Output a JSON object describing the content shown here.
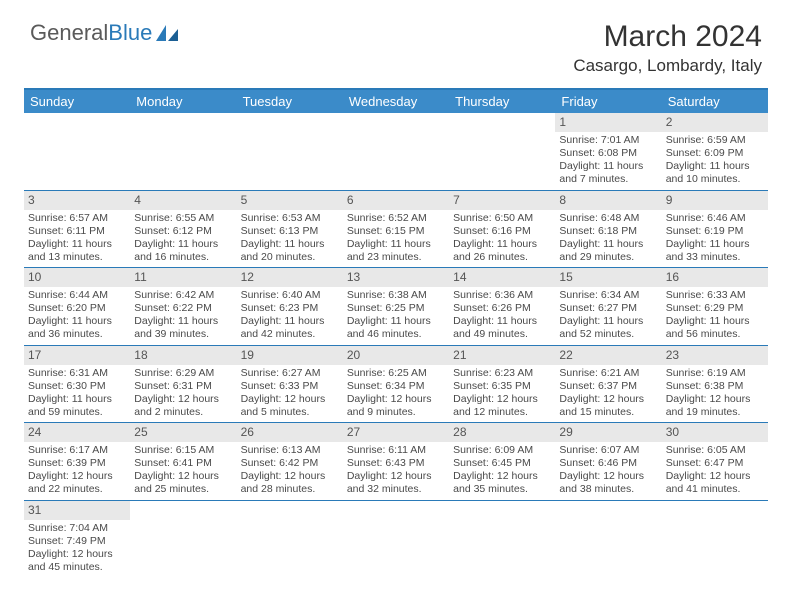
{
  "logo": {
    "text_a": "General",
    "text_b": "Blue"
  },
  "title": "March 2024",
  "subtitle": "Casargo, Lombardy, Italy",
  "colors": {
    "header_bg": "#3b8bc9",
    "border": "#2a7ab8",
    "daynum_bg": "#e8e8e8",
    "text": "#4a4a4a"
  },
  "day_names": [
    "Sunday",
    "Monday",
    "Tuesday",
    "Wednesday",
    "Thursday",
    "Friday",
    "Saturday"
  ],
  "weeks": [
    [
      null,
      null,
      null,
      null,
      null,
      {
        "n": "1",
        "sunrise": "7:01 AM",
        "sunset": "6:08 PM",
        "day_h": "11",
        "day_m": "7"
      },
      {
        "n": "2",
        "sunrise": "6:59 AM",
        "sunset": "6:09 PM",
        "day_h": "11",
        "day_m": "10"
      }
    ],
    [
      {
        "n": "3",
        "sunrise": "6:57 AM",
        "sunset": "6:11 PM",
        "day_h": "11",
        "day_m": "13"
      },
      {
        "n": "4",
        "sunrise": "6:55 AM",
        "sunset": "6:12 PM",
        "day_h": "11",
        "day_m": "16"
      },
      {
        "n": "5",
        "sunrise": "6:53 AM",
        "sunset": "6:13 PM",
        "day_h": "11",
        "day_m": "20"
      },
      {
        "n": "6",
        "sunrise": "6:52 AM",
        "sunset": "6:15 PM",
        "day_h": "11",
        "day_m": "23"
      },
      {
        "n": "7",
        "sunrise": "6:50 AM",
        "sunset": "6:16 PM",
        "day_h": "11",
        "day_m": "26"
      },
      {
        "n": "8",
        "sunrise": "6:48 AM",
        "sunset": "6:18 PM",
        "day_h": "11",
        "day_m": "29"
      },
      {
        "n": "9",
        "sunrise": "6:46 AM",
        "sunset": "6:19 PM",
        "day_h": "11",
        "day_m": "33"
      }
    ],
    [
      {
        "n": "10",
        "sunrise": "6:44 AM",
        "sunset": "6:20 PM",
        "day_h": "11",
        "day_m": "36"
      },
      {
        "n": "11",
        "sunrise": "6:42 AM",
        "sunset": "6:22 PM",
        "day_h": "11",
        "day_m": "39"
      },
      {
        "n": "12",
        "sunrise": "6:40 AM",
        "sunset": "6:23 PM",
        "day_h": "11",
        "day_m": "42"
      },
      {
        "n": "13",
        "sunrise": "6:38 AM",
        "sunset": "6:25 PM",
        "day_h": "11",
        "day_m": "46"
      },
      {
        "n": "14",
        "sunrise": "6:36 AM",
        "sunset": "6:26 PM",
        "day_h": "11",
        "day_m": "49"
      },
      {
        "n": "15",
        "sunrise": "6:34 AM",
        "sunset": "6:27 PM",
        "day_h": "11",
        "day_m": "52"
      },
      {
        "n": "16",
        "sunrise": "6:33 AM",
        "sunset": "6:29 PM",
        "day_h": "11",
        "day_m": "56"
      }
    ],
    [
      {
        "n": "17",
        "sunrise": "6:31 AM",
        "sunset": "6:30 PM",
        "day_h": "11",
        "day_m": "59"
      },
      {
        "n": "18",
        "sunrise": "6:29 AM",
        "sunset": "6:31 PM",
        "day_h": "12",
        "day_m": "2"
      },
      {
        "n": "19",
        "sunrise": "6:27 AM",
        "sunset": "6:33 PM",
        "day_h": "12",
        "day_m": "5"
      },
      {
        "n": "20",
        "sunrise": "6:25 AM",
        "sunset": "6:34 PM",
        "day_h": "12",
        "day_m": "9"
      },
      {
        "n": "21",
        "sunrise": "6:23 AM",
        "sunset": "6:35 PM",
        "day_h": "12",
        "day_m": "12"
      },
      {
        "n": "22",
        "sunrise": "6:21 AM",
        "sunset": "6:37 PM",
        "day_h": "12",
        "day_m": "15"
      },
      {
        "n": "23",
        "sunrise": "6:19 AM",
        "sunset": "6:38 PM",
        "day_h": "12",
        "day_m": "19"
      }
    ],
    [
      {
        "n": "24",
        "sunrise": "6:17 AM",
        "sunset": "6:39 PM",
        "day_h": "12",
        "day_m": "22"
      },
      {
        "n": "25",
        "sunrise": "6:15 AM",
        "sunset": "6:41 PM",
        "day_h": "12",
        "day_m": "25"
      },
      {
        "n": "26",
        "sunrise": "6:13 AM",
        "sunset": "6:42 PM",
        "day_h": "12",
        "day_m": "28"
      },
      {
        "n": "27",
        "sunrise": "6:11 AM",
        "sunset": "6:43 PM",
        "day_h": "12",
        "day_m": "32"
      },
      {
        "n": "28",
        "sunrise": "6:09 AM",
        "sunset": "6:45 PM",
        "day_h": "12",
        "day_m": "35"
      },
      {
        "n": "29",
        "sunrise": "6:07 AM",
        "sunset": "6:46 PM",
        "day_h": "12",
        "day_m": "38"
      },
      {
        "n": "30",
        "sunrise": "6:05 AM",
        "sunset": "6:47 PM",
        "day_h": "12",
        "day_m": "41"
      }
    ],
    [
      {
        "n": "31",
        "sunrise": "7:04 AM",
        "sunset": "7:49 PM",
        "day_h": "12",
        "day_m": "45"
      },
      null,
      null,
      null,
      null,
      null,
      null
    ]
  ]
}
